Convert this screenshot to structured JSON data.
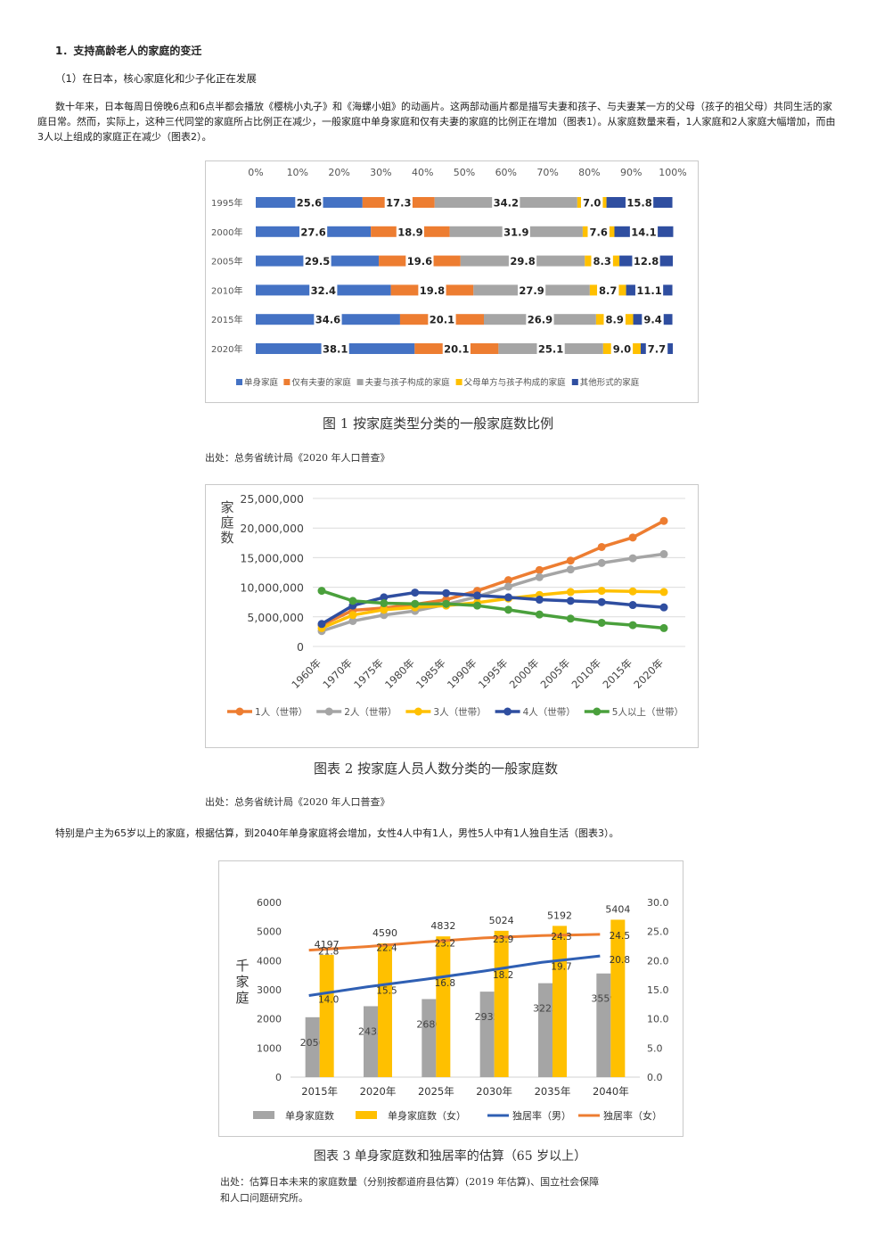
{
  "heading1": "1．支持高龄老人的家庭的变迁",
  "heading2": "（1）在日本，核心家庭化和少子化正在发展",
  "paragraph1": "数十年来，日本每周日傍晚6点和6点半都会播放《樱桃小丸子》和《海螺小姐》的动画片。这两部动画片都是描写夫妻和孩子、与夫妻某一方的父母（孩子的祖父母）共同生活的家庭日常。然而，实际上，这种三代同堂的家庭所占比例正在减少，一般家庭中单身家庭和仅有夫妻的家庭的比例正在增加（图表1）。从家庭数量来看，1人家庭和2人家庭大幅增加，而由3人以上组成的家庭正在减少（图表2）。",
  "paragraph2": "特别是户主为65岁以上的家庭，根据估算，到2040年单身家庭将会增加，女性4人中有1人，男性5人中有1人独自生活（图表3）。",
  "figure1": {
    "caption": "图 1  按家庭类型分类的一般家庭数比例",
    "source": "出处：总务省统计局《2020 年人口普查》"
  },
  "figure2": {
    "caption": "图表 2    按家庭人员人数分类的一般家庭数",
    "source": "出处：总务省统计局《2020 年人口普查》"
  },
  "figure3": {
    "caption": "图表 3    单身家庭数和独居率的估算（65 岁以上）",
    "source_line1": "出处：估算日本未来的家庭数量（分别按都道府县估算）(2019 年估算)、国立社会保障",
    "source_line2": "和人口问题研究所。"
  },
  "chart_data": [
    {
      "type": "bar",
      "stacked": "percent",
      "orientation": "horizontal",
      "categories": [
        "1995年",
        "2000年",
        "2005年",
        "2010年",
        "2015年",
        "2020年"
      ],
      "x_ticks": [
        "0%",
        "10%",
        "20%",
        "30%",
        "40%",
        "50%",
        "60%",
        "70%",
        "80%",
        "90%",
        "100%"
      ],
      "series": [
        {
          "name": "单身家庭",
          "color": "#4472c4",
          "values": [
            25.6,
            27.6,
            29.5,
            32.4,
            34.6,
            38.1
          ]
        },
        {
          "name": "仅有夫妻的家庭",
          "color": "#ed7d31",
          "values": [
            17.3,
            18.9,
            19.6,
            19.8,
            20.1,
            20.1
          ]
        },
        {
          "name": "夫妻与孩子构成的家庭",
          "color": "#a5a5a5",
          "values": [
            34.2,
            31.9,
            29.8,
            27.9,
            26.9,
            25.1
          ]
        },
        {
          "name": "父母单方与孩子构成的家庭",
          "color": "#ffc000",
          "values": [
            7.0,
            7.6,
            8.3,
            8.7,
            8.9,
            9.0
          ]
        },
        {
          "name": "其他形式的家庭",
          "color": "#2f4ea0",
          "values": [
            15.8,
            14.1,
            12.8,
            11.1,
            9.4,
            7.7
          ]
        }
      ],
      "legend": "bottom"
    },
    {
      "type": "line",
      "ylabel": "家庭数",
      "x": [
        "1960年",
        "1970年",
        "1975年",
        "1980年",
        "1985年",
        "1990年",
        "1995年",
        "2000年",
        "2005年",
        "2010年",
        "2015年",
        "2020年"
      ],
      "y_ticks": [
        "25,000,000",
        "20,000,000",
        "15,000,000",
        "10,000,000",
        "5,000,000",
        "0"
      ],
      "ylim": [
        0,
        25000000
      ],
      "grid": true,
      "legend": "bottom",
      "series": [
        {
          "name": "1人（世带）",
          "color": "#ed7d31",
          "values": [
            3600000,
            6100000,
            6500000,
            7100000,
            7900000,
            9400000,
            11200000,
            12900000,
            14500000,
            16800000,
            18400000,
            21200000
          ]
        },
        {
          "name": "2人（世带）",
          "color": "#a5a5a5",
          "values": [
            2600000,
            4300000,
            5300000,
            6000000,
            7100000,
            8400000,
            10100000,
            11700000,
            13000000,
            14100000,
            14900000,
            15600000
          ]
        },
        {
          "name": "3人（世带）",
          "color": "#ffc000",
          "values": [
            3100000,
            5300000,
            6200000,
            6600000,
            6900000,
            7400000,
            8100000,
            8700000,
            9200000,
            9400000,
            9300000,
            9200000
          ]
        },
        {
          "name": "4人（世带）",
          "color": "#2f4ea0",
          "values": [
            3800000,
            6900000,
            8300000,
            9100000,
            9000000,
            8600000,
            8300000,
            7900000,
            7700000,
            7500000,
            7000000,
            6600000
          ]
        },
        {
          "name": "5人以上（世带）",
          "color": "#4aa03c",
          "values": [
            9400000,
            7700000,
            7300000,
            7200000,
            7200000,
            6900000,
            6200000,
            5400000,
            4700000,
            4000000,
            3600000,
            3100000
          ]
        }
      ]
    },
    {
      "type": "bar",
      "ylabel": "千家庭",
      "categories": [
        "2015年",
        "2020年",
        "2025年",
        "2030年",
        "2035年",
        "2040年"
      ],
      "y_ticks_left": [
        "6000",
        "5000",
        "4000",
        "3000",
        "2000",
        "1000",
        "0"
      ],
      "y_ticks_right": [
        "30.0",
        "25.0",
        "20.0",
        "15.0",
        "10.0",
        "5.0",
        "0.0"
      ],
      "ylim": [
        0,
        6000
      ],
      "y2lim": [
        0,
        30
      ],
      "legend": "bottom",
      "series": [
        {
          "name": "单身家庭数",
          "type": "bar",
          "color": "#a5a5a5",
          "values": [
            2056,
            2435,
            2680,
            2935,
            3225,
            3559
          ],
          "labels": [
            "2056",
            "2435",
            "2680",
            "2935",
            "3225",
            "3559"
          ]
        },
        {
          "name": "单身家庭数（女）",
          "type": "bar",
          "color": "#ffc000",
          "values": [
            4197,
            4590,
            4832,
            5024,
            5192,
            5404
          ],
          "labels": [
            "4197",
            "4590",
            "4832",
            "5024",
            "5192",
            "5404"
          ]
        },
        {
          "name": "独居率（男）",
          "type": "line",
          "axis": "right",
          "color": "#2f5fb3",
          "values": [
            14.0,
            15.5,
            16.8,
            18.2,
            19.7,
            20.8
          ],
          "labels": [
            "14.0",
            "15.5",
            "16.8",
            "18.2",
            "19.7",
            "20.8"
          ]
        },
        {
          "name": "独居率（女）",
          "type": "line",
          "axis": "right",
          "color": "#ed7d31",
          "values": [
            21.8,
            22.4,
            23.2,
            23.9,
            24.3,
            24.5
          ],
          "labels": [
            "21.8",
            "22.4",
            "23.2",
            "23.9",
            "24.3",
            "24.5"
          ]
        }
      ]
    }
  ]
}
